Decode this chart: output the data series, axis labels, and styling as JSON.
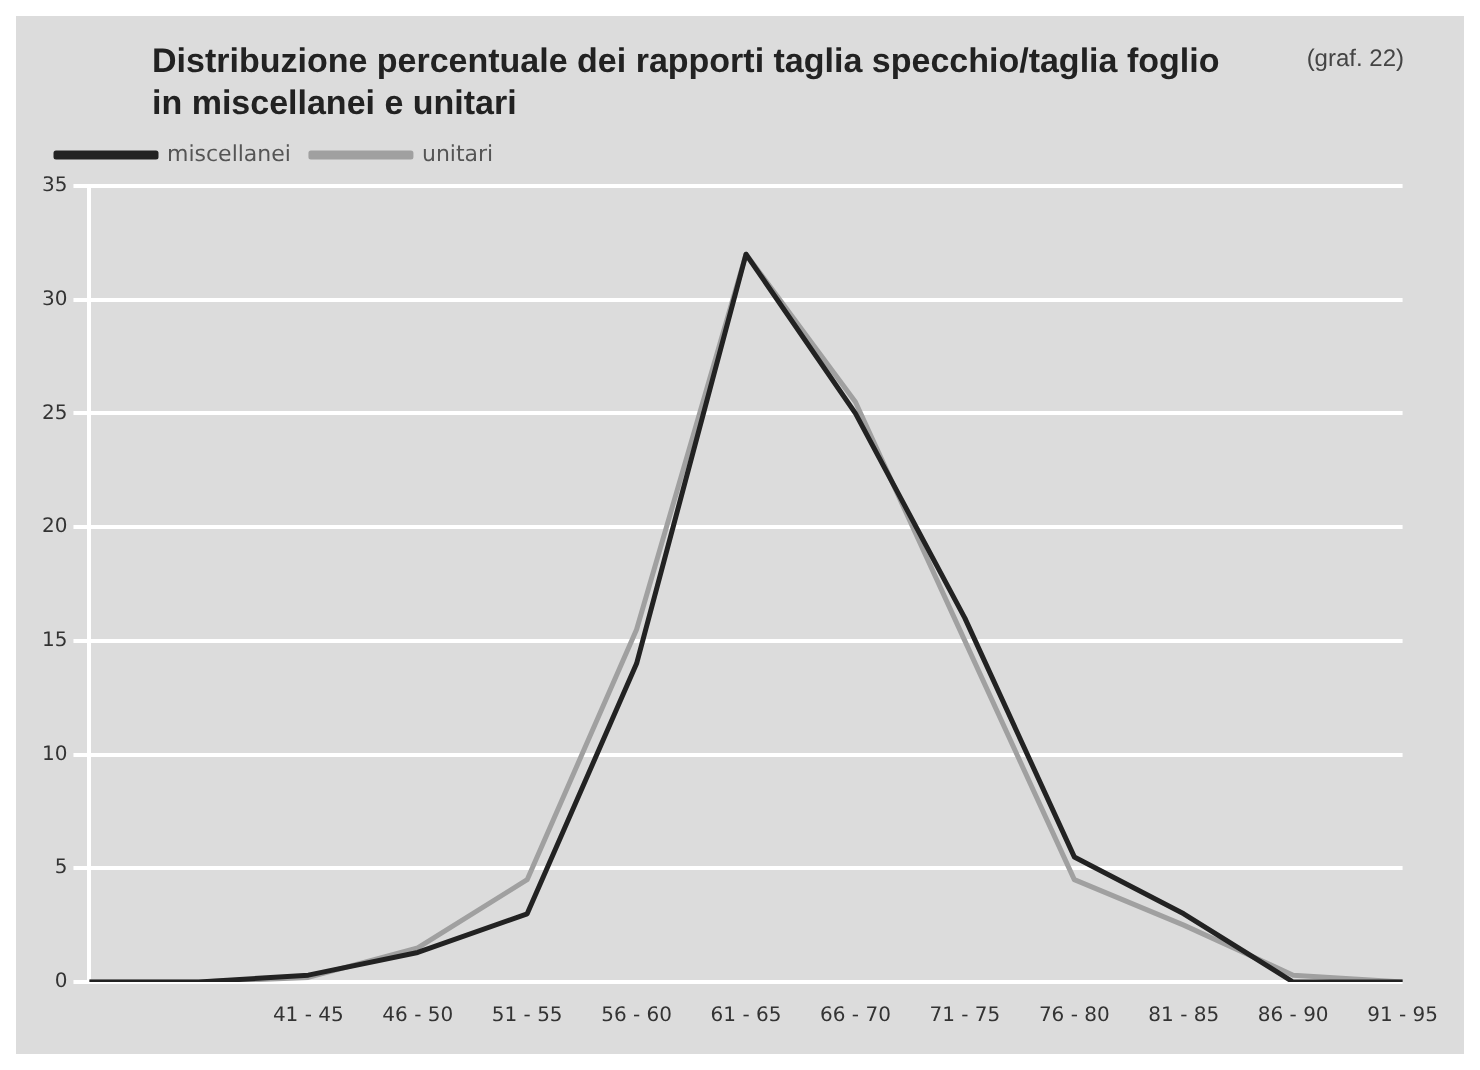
{
  "chart_data": {
    "type": "line",
    "title": "Distribuzione percentuale dei rapporti taglia specchio/taglia foglio\nin miscellanei e unitari",
    "annotations": [
      "(graf. 22)"
    ],
    "categories": [
      null,
      null,
      "41 - 45",
      "46 - 50",
      "51 - 55",
      "56 - 60",
      "61 - 65",
      "66 - 70",
      "71 - 75",
      "76 - 80",
      "81 - 85",
      "86 - 90",
      "91 - 95"
    ],
    "series": [
      {
        "name": "miscellanei",
        "color": "#222222",
        "values": [
          0,
          0,
          0.3,
          1.3,
          3,
          14,
          32,
          25,
          16,
          5.5,
          3,
          0,
          0
        ]
      },
      {
        "name": "unitari",
        "color": "#a0a0a0",
        "values": [
          0,
          0,
          0.2,
          1.5,
          4.5,
          15.5,
          32,
          25.5,
          15,
          4.5,
          2.5,
          0.3,
          0
        ]
      }
    ],
    "ylim": [
      0,
      35
    ],
    "yticks": [
      0,
      5,
      10,
      15,
      20,
      25,
      30,
      35
    ],
    "grid": "y",
    "legend": "top left",
    "marker": "none",
    "line_style": "solid"
  }
}
